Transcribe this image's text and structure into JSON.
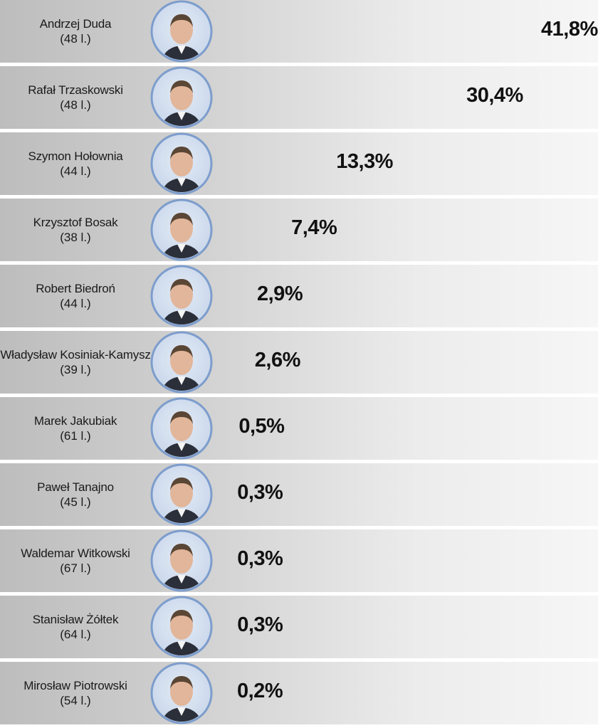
{
  "chart_data": {
    "type": "bar",
    "orientation": "horizontal",
    "categories": [
      "Andrzej Duda",
      "Rafał Trzaskowski",
      "Szymon Hołownia",
      "Krzysztof Bosak",
      "Robert Biedroń",
      "Władysław Kosiniak-Kamysz",
      "Marek Jakubiak",
      "Paweł Tanajno",
      "Waldemar Witkowski",
      "Stanisław Żółtek",
      "Mirosław Piotrowski"
    ],
    "values": [
      41.8,
      30.4,
      13.3,
      7.4,
      2.9,
      2.6,
      0.5,
      0.3,
      0.3,
      0.3,
      0.2
    ],
    "value_labels": [
      "41,8%",
      "30,4%",
      "13,3%",
      "7,4%",
      "2,9%",
      "2,6%",
      "0,5%",
      "0,3%",
      "0,3%",
      "0,3%",
      "0,2%"
    ],
    "ages": [
      "(48 l.)",
      "(48 l.)",
      "(44 l.)",
      "(38 l.)",
      "(44 l.)",
      "(39 l.)",
      "(61 l.)",
      "(45 l.)",
      "(67 l.)",
      "(64 l.)",
      "(54 l.)"
    ],
    "xlim": [
      0,
      41.8
    ],
    "bar_style": "3d",
    "grid": false,
    "legend": "none"
  },
  "colors": {
    "bar_front_top": "#e8462f",
    "bar_front_bottom": "#d52417",
    "bar_top_face_light": "#e0523d",
    "bar_top_face_dark": "#8b0f0c",
    "bar_side": "#f27a5d",
    "photo_ring": "#7d9dcc",
    "photo_bg": "#c8d6ea",
    "text": "#111111"
  },
  "icons": {
    "photo": "person-portrait-icon"
  }
}
